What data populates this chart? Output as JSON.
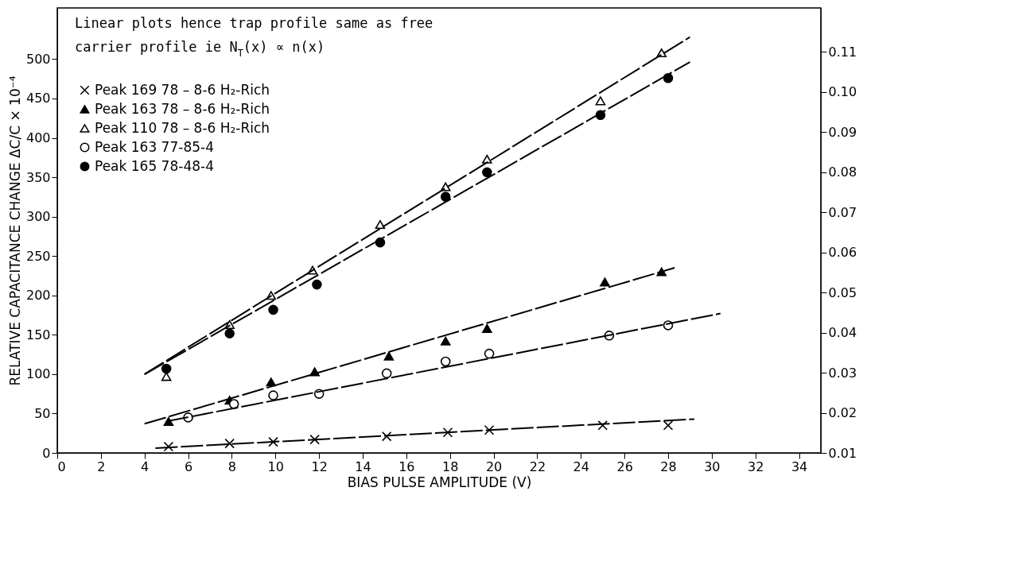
{
  "chart_data": {
    "type": "scatter",
    "xlabel": "BIAS PULSE AMPLITUDE (V)",
    "ylabel": "RELATIVE CAPACITANCE CHANGE ΔC/C × 10⁻⁴",
    "annotations": [
      "Linear plots hence trap profile same as free",
      "carrier profile ie N$_{T}$(x) ∝ n(x)"
    ],
    "xlim": [
      0,
      35
    ],
    "xticks": [
      0,
      2,
      4,
      6,
      8,
      10,
      12,
      14,
      16,
      18,
      20,
      22,
      24,
      26,
      28,
      30,
      32,
      34
    ],
    "ylim": [
      0,
      565
    ],
    "yticks": [
      0,
      50,
      100,
      150,
      200,
      250,
      300,
      350,
      400,
      450,
      500
    ],
    "y2lim": [
      0.01,
      0.121
    ],
    "y2ticks": [
      0.01,
      0.02,
      0.03,
      0.04,
      0.05,
      0.06,
      0.07,
      0.08,
      0.09,
      {
        "value": 0.1,
        "label": "0.10"
      },
      0.11
    ],
    "grid": false,
    "legend": "top left",
    "series": [
      {
        "name": "Peak 169  78 – 8-6 H₂-Rich",
        "marker": "cross",
        "color": "#000000",
        "x": [
          5.1,
          7.9,
          9.9,
          11.8,
          15.1,
          17.9,
          19.8,
          25,
          28
        ],
        "values": [
          8,
          12,
          14,
          17,
          21,
          26,
          29,
          35,
          35
        ]
      },
      {
        "name": "Peak 163  78 – 8-6 H₂-Rich",
        "marker": "triangle",
        "color": "#000000",
        "x": [
          5.1,
          7.9,
          9.8,
          11.8,
          15.2,
          17.8,
          19.7,
          25.1,
          27.7
        ],
        "values": [
          40,
          67,
          90,
          103,
          123,
          142,
          158,
          217,
          230
        ]
      },
      {
        "name": "Peak 110  78 – 8-6 H₂-Rich",
        "marker": "triangle-open",
        "color": "#000000",
        "x": [
          5,
          7.9,
          9.8,
          11.7,
          14.8,
          17.8,
          19.7,
          24.9,
          27.7
        ],
        "values": [
          97,
          163,
          200,
          232,
          290,
          338,
          373,
          447,
          508
        ]
      },
      {
        "name": "Peak 163  77-85-4",
        "marker": "circle-open",
        "color": "#000000",
        "x": [
          6,
          8.1,
          9.9,
          12,
          15.1,
          17.8,
          19.8,
          25.3,
          28
        ],
        "values": [
          45,
          62,
          73,
          75,
          101,
          116,
          126,
          149,
          162
        ]
      },
      {
        "name": "Peak 165  78-48-4",
        "marker": "circle",
        "axis": "y2",
        "color": "#000000",
        "x": [
          5,
          7.9,
          9.9,
          11.9,
          14.8,
          17.8,
          19.7,
          24.9,
          28
        ],
        "values": [
          0.031,
          0.0398,
          0.0457,
          0.052,
          0.0625,
          0.0739,
          0.08,
          0.0943,
          0.1035
        ]
      },
      {
        "type": "line",
        "color": "#000000",
        "marker": "none",
        "line_style": "dashed",
        "x": [
          4.5,
          29.2
        ],
        "values": [
          6,
          43
        ]
      },
      {
        "type": "line",
        "color": "#000000",
        "marker": "none",
        "line_style": "dashed",
        "x": [
          4,
          28.3
        ],
        "values": [
          37,
          235
        ]
      },
      {
        "type": "line",
        "color": "#000000",
        "marker": "none",
        "line_style": "dashed",
        "x": [
          4,
          29
        ],
        "values": [
          100,
          528
        ]
      },
      {
        "type": "line",
        "color": "#000000",
        "marker": "none",
        "line_style": "dashed",
        "x": [
          5,
          30.4
        ],
        "values": [
          40,
          177
        ]
      },
      {
        "type": "line",
        "color": "#000000",
        "marker": "none",
        "line_style": "dashed",
        "axis": "y2",
        "x": [
          4,
          29
        ],
        "values": [
          0.0296,
          0.1075
        ]
      }
    ]
  }
}
